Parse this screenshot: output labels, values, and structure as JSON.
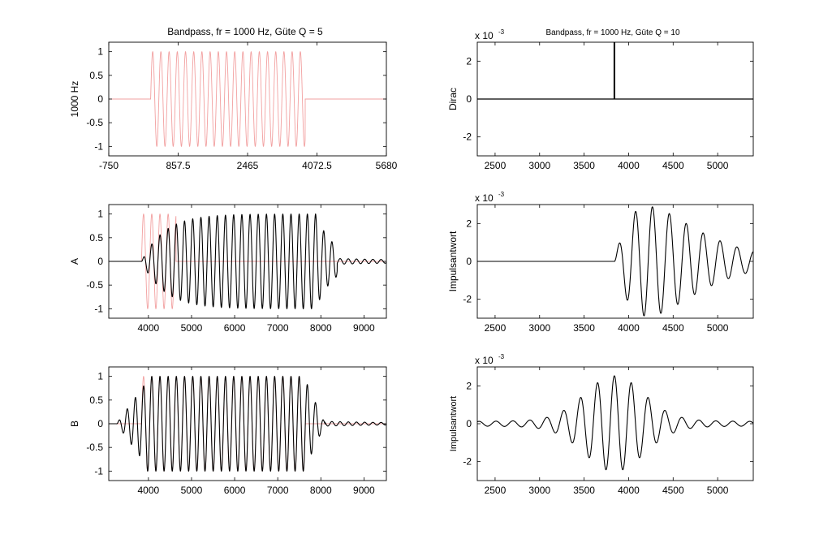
{
  "colors": {
    "background": "#ffffff",
    "input_signal": "#f2a0a0",
    "output_signal": "#000000",
    "axes": "#000000"
  },
  "chart_data": [
    {
      "id": "ax1",
      "type": "line",
      "title": "Bandpass, fr = 1000 Hz, Güte Q = 5",
      "ylabel": "1000 Hz",
      "xlabel": "",
      "xlim": [
        -750,
        5680
      ],
      "ylim": [
        -1.2,
        1.2
      ],
      "xticks": [
        -750,
        857.5,
        2465,
        4072.5,
        5680
      ],
      "xticklabels": [
        "-750",
        "857.5",
        "2465",
        "4072.5",
        "5680"
      ],
      "yticks": [
        1,
        0.5,
        0,
        -0.5,
        -1
      ],
      "yticklabels": [
        "1",
        "0.5",
        "0",
        "-0.5",
        "-1"
      ],
      "grid": false,
      "legend": "none",
      "series": [
        {
          "role": "input",
          "color": "#f2a0a0",
          "kind": "burst",
          "freq_hz": 1000,
          "t_unit_ms": 0.001,
          "start": 220,
          "end": 3800,
          "amplitude": 1
        }
      ]
    },
    {
      "id": "ax2",
      "type": "line",
      "title": "Bandpass, fr = 1000 Hz, Güte Q = 10",
      "ylabel": "Dirac",
      "xlabel": "",
      "exponent": "x 10-3",
      "xlim": [
        2300,
        5400
      ],
      "ylim": [
        -3,
        3
      ],
      "xticks": [
        2500,
        3000,
        3500,
        4000,
        4500,
        5000
      ],
      "xticklabels": [
        "2500",
        "3000",
        "3500",
        "4000",
        "4500",
        "5000"
      ],
      "yticks": [
        2,
        0,
        -2
      ],
      "yticklabels": [
        "2",
        "0",
        "-2"
      ],
      "grid": false,
      "legend": "none",
      "series": [
        {
          "role": "dirac",
          "color": "#000000",
          "kind": "impulse",
          "at": 3840,
          "height": 3
        }
      ]
    },
    {
      "id": "ax3",
      "type": "line",
      "title": "",
      "ylabel": "A",
      "xlabel": "",
      "xlim": [
        3080,
        9520
      ],
      "ylim": [
        -1.2,
        1.2
      ],
      "xticks": [
        4000,
        5000,
        6000,
        7000,
        8000,
        9000
      ],
      "xticklabels": [
        "4000",
        "5000",
        "6000",
        "7000",
        "8000",
        "9000"
      ],
      "yticks": [
        1,
        0.5,
        0,
        -0.5,
        -1
      ],
      "yticklabels": [
        "1",
        "0.5",
        "0",
        "-0.5",
        "-1"
      ],
      "grid": false,
      "legend": "none",
      "series": [
        {
          "role": "input",
          "color": "#f2a0a0",
          "kind": "burst",
          "freq_hz": 1000,
          "start": 3840,
          "end": 4640,
          "amplitude": 1
        },
        {
          "role": "output",
          "color": "#000000",
          "kind": "filtered_burst",
          "freq_hz": 1000,
          "onset": 3840,
          "offset": 7880,
          "rise_ms": 0.55,
          "decay_ms": 0.45,
          "amplitude": 1,
          "tail_end": 9520
        }
      ]
    },
    {
      "id": "ax4",
      "type": "line",
      "title": "",
      "ylabel": "Impulsantwort",
      "xlabel": "",
      "exponent": "x 10-3",
      "xlim": [
        2300,
        5400
      ],
      "ylim": [
        -3,
        3
      ],
      "xticks": [
        2500,
        3000,
        3500,
        4000,
        4500,
        5000
      ],
      "xticklabels": [
        "2500",
        "3000",
        "3500",
        "4000",
        "4500",
        "5000"
      ],
      "yticks": [
        2,
        0,
        -2
      ],
      "yticklabels": [
        "2",
        "0",
        "-2"
      ],
      "grid": false,
      "legend": "none",
      "series": [
        {
          "role": "impulse_response",
          "color": "#000000",
          "kind": "causal_ringing",
          "freq_hz": 1000,
          "start": 3840,
          "peak": 2.9,
          "peak_at": 4220,
          "decay_ms": 0.42
        }
      ]
    },
    {
      "id": "ax5",
      "type": "line",
      "title": "",
      "ylabel": "B",
      "xlabel": "",
      "xlim": [
        3080,
        9520
      ],
      "ylim": [
        -1.2,
        1.2
      ],
      "xticks": [
        4000,
        5000,
        6000,
        7000,
        8000,
        9000
      ],
      "xticklabels": [
        "4000",
        "5000",
        "6000",
        "7000",
        "8000",
        "9000"
      ],
      "yticks": [
        1,
        0.5,
        0,
        -0.5,
        -1
      ],
      "yticklabels": [
        "1",
        "0.5",
        "0",
        "-0.5",
        "-1"
      ],
      "grid": false,
      "legend": "none",
      "series": [
        {
          "role": "input",
          "color": "#f2a0a0",
          "kind": "burst",
          "freq_hz": 1000,
          "start": 3840,
          "end": 7640,
          "amplitude": 1
        },
        {
          "role": "output",
          "color": "#000000",
          "kind": "symmetric_filtered_burst",
          "freq_hz": 1000,
          "onset": 3460,
          "offset": 7900,
          "ramp_ms": 0.55,
          "amplitude": 1,
          "tail_end": 9520
        }
      ]
    },
    {
      "id": "ax6",
      "type": "line",
      "title": "",
      "ylabel": "Impulsantwort",
      "xlabel": "",
      "exponent": "x 10-3",
      "xlim": [
        2300,
        5400
      ],
      "ylim": [
        -3,
        3
      ],
      "xticks": [
        2500,
        3000,
        3500,
        4000,
        4500,
        5000
      ],
      "xticklabels": [
        "2500",
        "3000",
        "3500",
        "4000",
        "4500",
        "5000"
      ],
      "yticks": [
        2,
        0,
        -2
      ],
      "yticklabels": [
        "2",
        "0",
        "-2"
      ],
      "grid": false,
      "legend": "none",
      "series": [
        {
          "role": "impulse_response",
          "color": "#000000",
          "kind": "symmetric_ringing",
          "freq_hz": 1000,
          "center": 3840,
          "peak": 2.3,
          "decay_ms": 0.55
        }
      ]
    }
  ]
}
